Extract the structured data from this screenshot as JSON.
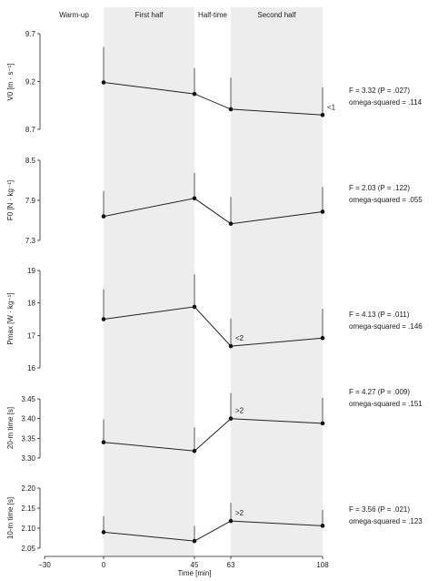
{
  "chart_data": {
    "type": "line",
    "phases": [
      {
        "name": "Warm-up",
        "range": [
          -30,
          0
        ],
        "shaded": false
      },
      {
        "name": "First half",
        "range": [
          0,
          45
        ],
        "shaded": true
      },
      {
        "name": "Half-time",
        "range": [
          45,
          63
        ],
        "shaded": false
      },
      {
        "name": "Second half",
        "range": [
          63,
          108
        ],
        "shaded": true
      }
    ],
    "xlabel": "Time [min]",
    "xticks": [
      -30,
      0,
      45,
      63,
      108
    ],
    "xlim": [
      -30,
      108
    ],
    "x": [
      0,
      45,
      63,
      108
    ],
    "panels": [
      {
        "ylabel": "V0 [m · s⁻¹]",
        "ylim": [
          8.7,
          9.7
        ],
        "yticks": [
          "9.7",
          "9.2",
          "8.7"
        ],
        "values": [
          9.19,
          9.07,
          8.91,
          8.85
        ],
        "errors_upper": [
          9.56,
          9.34,
          9.24,
          9.14
        ],
        "annotations": [
          {
            "x": 108,
            "text": "<1"
          }
        ],
        "stat_f": "F = 3.32 (P = .027)",
        "stat_omega": "omega-squared = .114"
      },
      {
        "ylabel": "F0 [N · kg⁻¹]",
        "ylim": [
          7.3,
          8.5
        ],
        "yticks": [
          "8.5",
          "7.9",
          "7.3"
        ],
        "values": [
          7.66,
          7.93,
          7.55,
          7.73
        ],
        "errors_upper": [
          8.04,
          8.31,
          7.95,
          8.1
        ],
        "annotations": [],
        "stat_f": "F = 2.03 (P = .122)",
        "stat_omega": "omega-squared = .055"
      },
      {
        "ylabel": "Pmax [W · kg⁻¹]",
        "ylim": [
          16,
          19
        ],
        "yticks": [
          "19",
          "18",
          "17",
          "16"
        ],
        "values": [
          17.5,
          17.88,
          16.67,
          16.92
        ],
        "errors_upper": [
          18.42,
          18.88,
          17.52,
          17.82
        ],
        "annotations": [
          {
            "x": 63,
            "text": "<2"
          }
        ],
        "stat_f": "F = 4.13 (P = .011)",
        "stat_omega": "omega-squared = .146"
      },
      {
        "ylabel": "20-m time [s]",
        "ylim": [
          3.3,
          3.45
        ],
        "yticks": [
          "3.45",
          "3.40",
          "3.35",
          "3.30"
        ],
        "values": [
          3.34,
          3.318,
          3.4,
          3.388
        ],
        "errors_upper": [
          3.398,
          3.378,
          3.465,
          3.453
        ],
        "annotations": [
          {
            "x": 63,
            "text": ">2"
          }
        ],
        "stat_f": "F = 4.27 (P = .009)",
        "stat_omega": "omega-squared = .151"
      },
      {
        "ylabel": "10-m time [s]",
        "ylim": [
          2.05,
          2.2
        ],
        "yticks": [
          "2.20",
          "2.15",
          "2.10",
          "2.05"
        ],
        "values": [
          2.09,
          2.068,
          2.118,
          2.106
        ],
        "errors_upper": [
          2.13,
          2.106,
          2.163,
          2.146
        ],
        "annotations": [
          {
            "x": 63,
            "text": ">2"
          }
        ],
        "stat_f": "F = 3.56 (P = .021)",
        "stat_omega": "omega-squared = .123"
      }
    ]
  }
}
